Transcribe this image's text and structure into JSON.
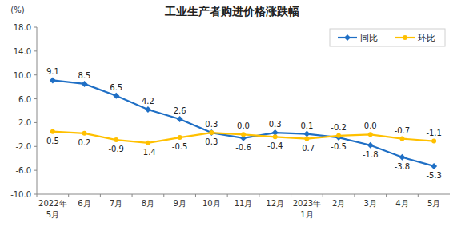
{
  "chart_data": {
    "type": "line",
    "title": "工业生产者购进价格涨跌幅",
    "y_label": "(%)",
    "categories": [
      "2022年\n5月",
      "6月",
      "7月",
      "8月",
      "9月",
      "10月",
      "11月",
      "12月",
      "2023年\n1月",
      "2月",
      "3月",
      "4月",
      "5月"
    ],
    "series": [
      {
        "name": "同比",
        "color": "#1f6fc5",
        "marker": "diamond",
        "values": [
          9.1,
          8.5,
          6.5,
          4.2,
          2.6,
          0.3,
          -0.6,
          0.3,
          0.1,
          -0.5,
          -1.8,
          -3.8,
          -5.3
        ],
        "value_labels": [
          "9.1",
          "8.5",
          "6.5",
          "4.2",
          "2.6",
          "0.3",
          "-0.6",
          "0.3",
          "0.1",
          "-0.5",
          "-1.8",
          "-3.8",
          "-5.3"
        ]
      },
      {
        "name": "环比",
        "color": "#ffc000",
        "marker": "circle",
        "values": [
          0.5,
          0.2,
          -0.9,
          -1.4,
          -0.5,
          0.3,
          0.0,
          -0.4,
          -0.7,
          -0.2,
          0.0,
          -0.7,
          -1.1
        ],
        "value_labels": [
          "0.5",
          "0.2",
          "-0.9",
          "-1.4",
          "-0.5",
          "0.3",
          "0.0",
          "-0.4",
          "-0.7",
          "-0.2",
          "0.0",
          "-0.7",
          "-1.1"
        ]
      }
    ],
    "ylim": [
      -10,
      18
    ],
    "yticks": [
      {
        "value": 18,
        "label": "18.0"
      },
      {
        "value": 14,
        "label": "14.0"
      },
      {
        "value": 10,
        "label": "10.0"
      },
      {
        "value": 6,
        "label": "6.0"
      },
      {
        "value": 2,
        "label": "2.0"
      },
      {
        "value": -2,
        "label": "-2.0"
      },
      {
        "value": -6,
        "label": "-6.0"
      },
      {
        "value": -10,
        "label": "-10.0"
      }
    ],
    "grid": false,
    "legend": "top right",
    "data_labels": true
  }
}
